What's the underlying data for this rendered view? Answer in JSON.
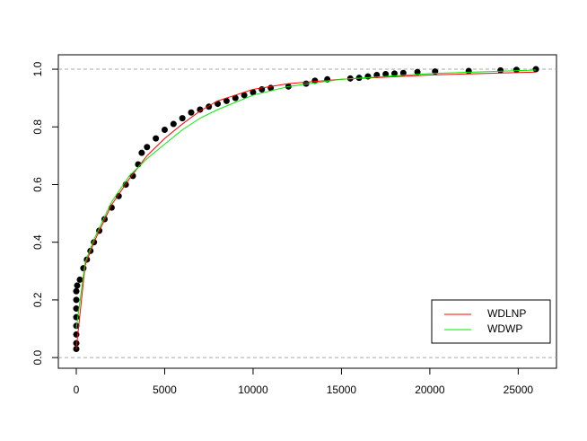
{
  "chart_data": {
    "type": "scatter",
    "xlim": [
      -1016,
      27165
    ],
    "ylim": [
      -0.037,
      1.05
    ],
    "xticks": [
      0,
      5000,
      10000,
      15000,
      20000,
      25000
    ],
    "yticks": [
      {
        "value": 0,
        "label": "0.0"
      },
      {
        "value": 0.2,
        "label": "0.2"
      },
      {
        "value": 0.4,
        "label": "0.4"
      },
      {
        "value": 0.6,
        "label": "0.6"
      },
      {
        "value": 0.8,
        "label": "0.8"
      },
      {
        "value": 1,
        "label": "1.0"
      }
    ],
    "hlines": [
      0,
      1
    ],
    "legend": "bottom-right",
    "points": {
      "color": "#000000",
      "x": [
        0,
        0,
        0,
        0,
        0,
        0,
        0,
        0,
        50,
        200,
        400,
        600,
        800,
        1000,
        1300,
        1600,
        2000,
        2400,
        2800,
        3200,
        3500,
        3700,
        4000,
        4500,
        5000,
        5500,
        6000,
        6500,
        7000,
        7500,
        8000,
        8500,
        9000,
        9500,
        10000,
        10500,
        11000,
        12000,
        13000,
        13500,
        14200,
        15500,
        16000,
        16500,
        17000,
        17500,
        18000,
        18500,
        19300,
        20300,
        22200,
        24000,
        24900,
        26000
      ],
      "y": [
        0.03,
        0.05,
        0.08,
        0.11,
        0.14,
        0.17,
        0.2,
        0.23,
        0.25,
        0.27,
        0.31,
        0.34,
        0.37,
        0.4,
        0.44,
        0.48,
        0.52,
        0.56,
        0.6,
        0.63,
        0.67,
        0.71,
        0.73,
        0.76,
        0.79,
        0.81,
        0.83,
        0.85,
        0.86,
        0.87,
        0.88,
        0.89,
        0.9,
        0.91,
        0.92,
        0.93,
        0.935,
        0.94,
        0.95,
        0.96,
        0.965,
        0.968,
        0.97,
        0.975,
        0.98,
        0.983,
        0.985,
        0.987,
        0.99,
        0.992,
        0.994,
        0.996,
        0.998,
        1.0
      ]
    },
    "series": [
      {
        "name": "WDLNP",
        "color": "#ff0000",
        "x": [
          0,
          500,
          1000,
          2000,
          3000,
          4000,
          5000,
          6000,
          7000,
          8000,
          10000,
          12000,
          15000,
          20000,
          26000
        ],
        "values": [
          0.03,
          0.32,
          0.4,
          0.53,
          0.62,
          0.7,
          0.76,
          0.81,
          0.855,
          0.89,
          0.93,
          0.95,
          0.965,
          0.98,
          0.99
        ]
      },
      {
        "name": "WDWP",
        "color": "#00ee00",
        "x": [
          0,
          500,
          1000,
          2000,
          3000,
          4000,
          5000,
          6000,
          7000,
          8000,
          10000,
          12000,
          15000,
          20000,
          26000
        ],
        "values": [
          0.1,
          0.33,
          0.41,
          0.54,
          0.63,
          0.69,
          0.74,
          0.79,
          0.83,
          0.86,
          0.91,
          0.94,
          0.965,
          0.985,
          0.997
        ]
      }
    ]
  }
}
